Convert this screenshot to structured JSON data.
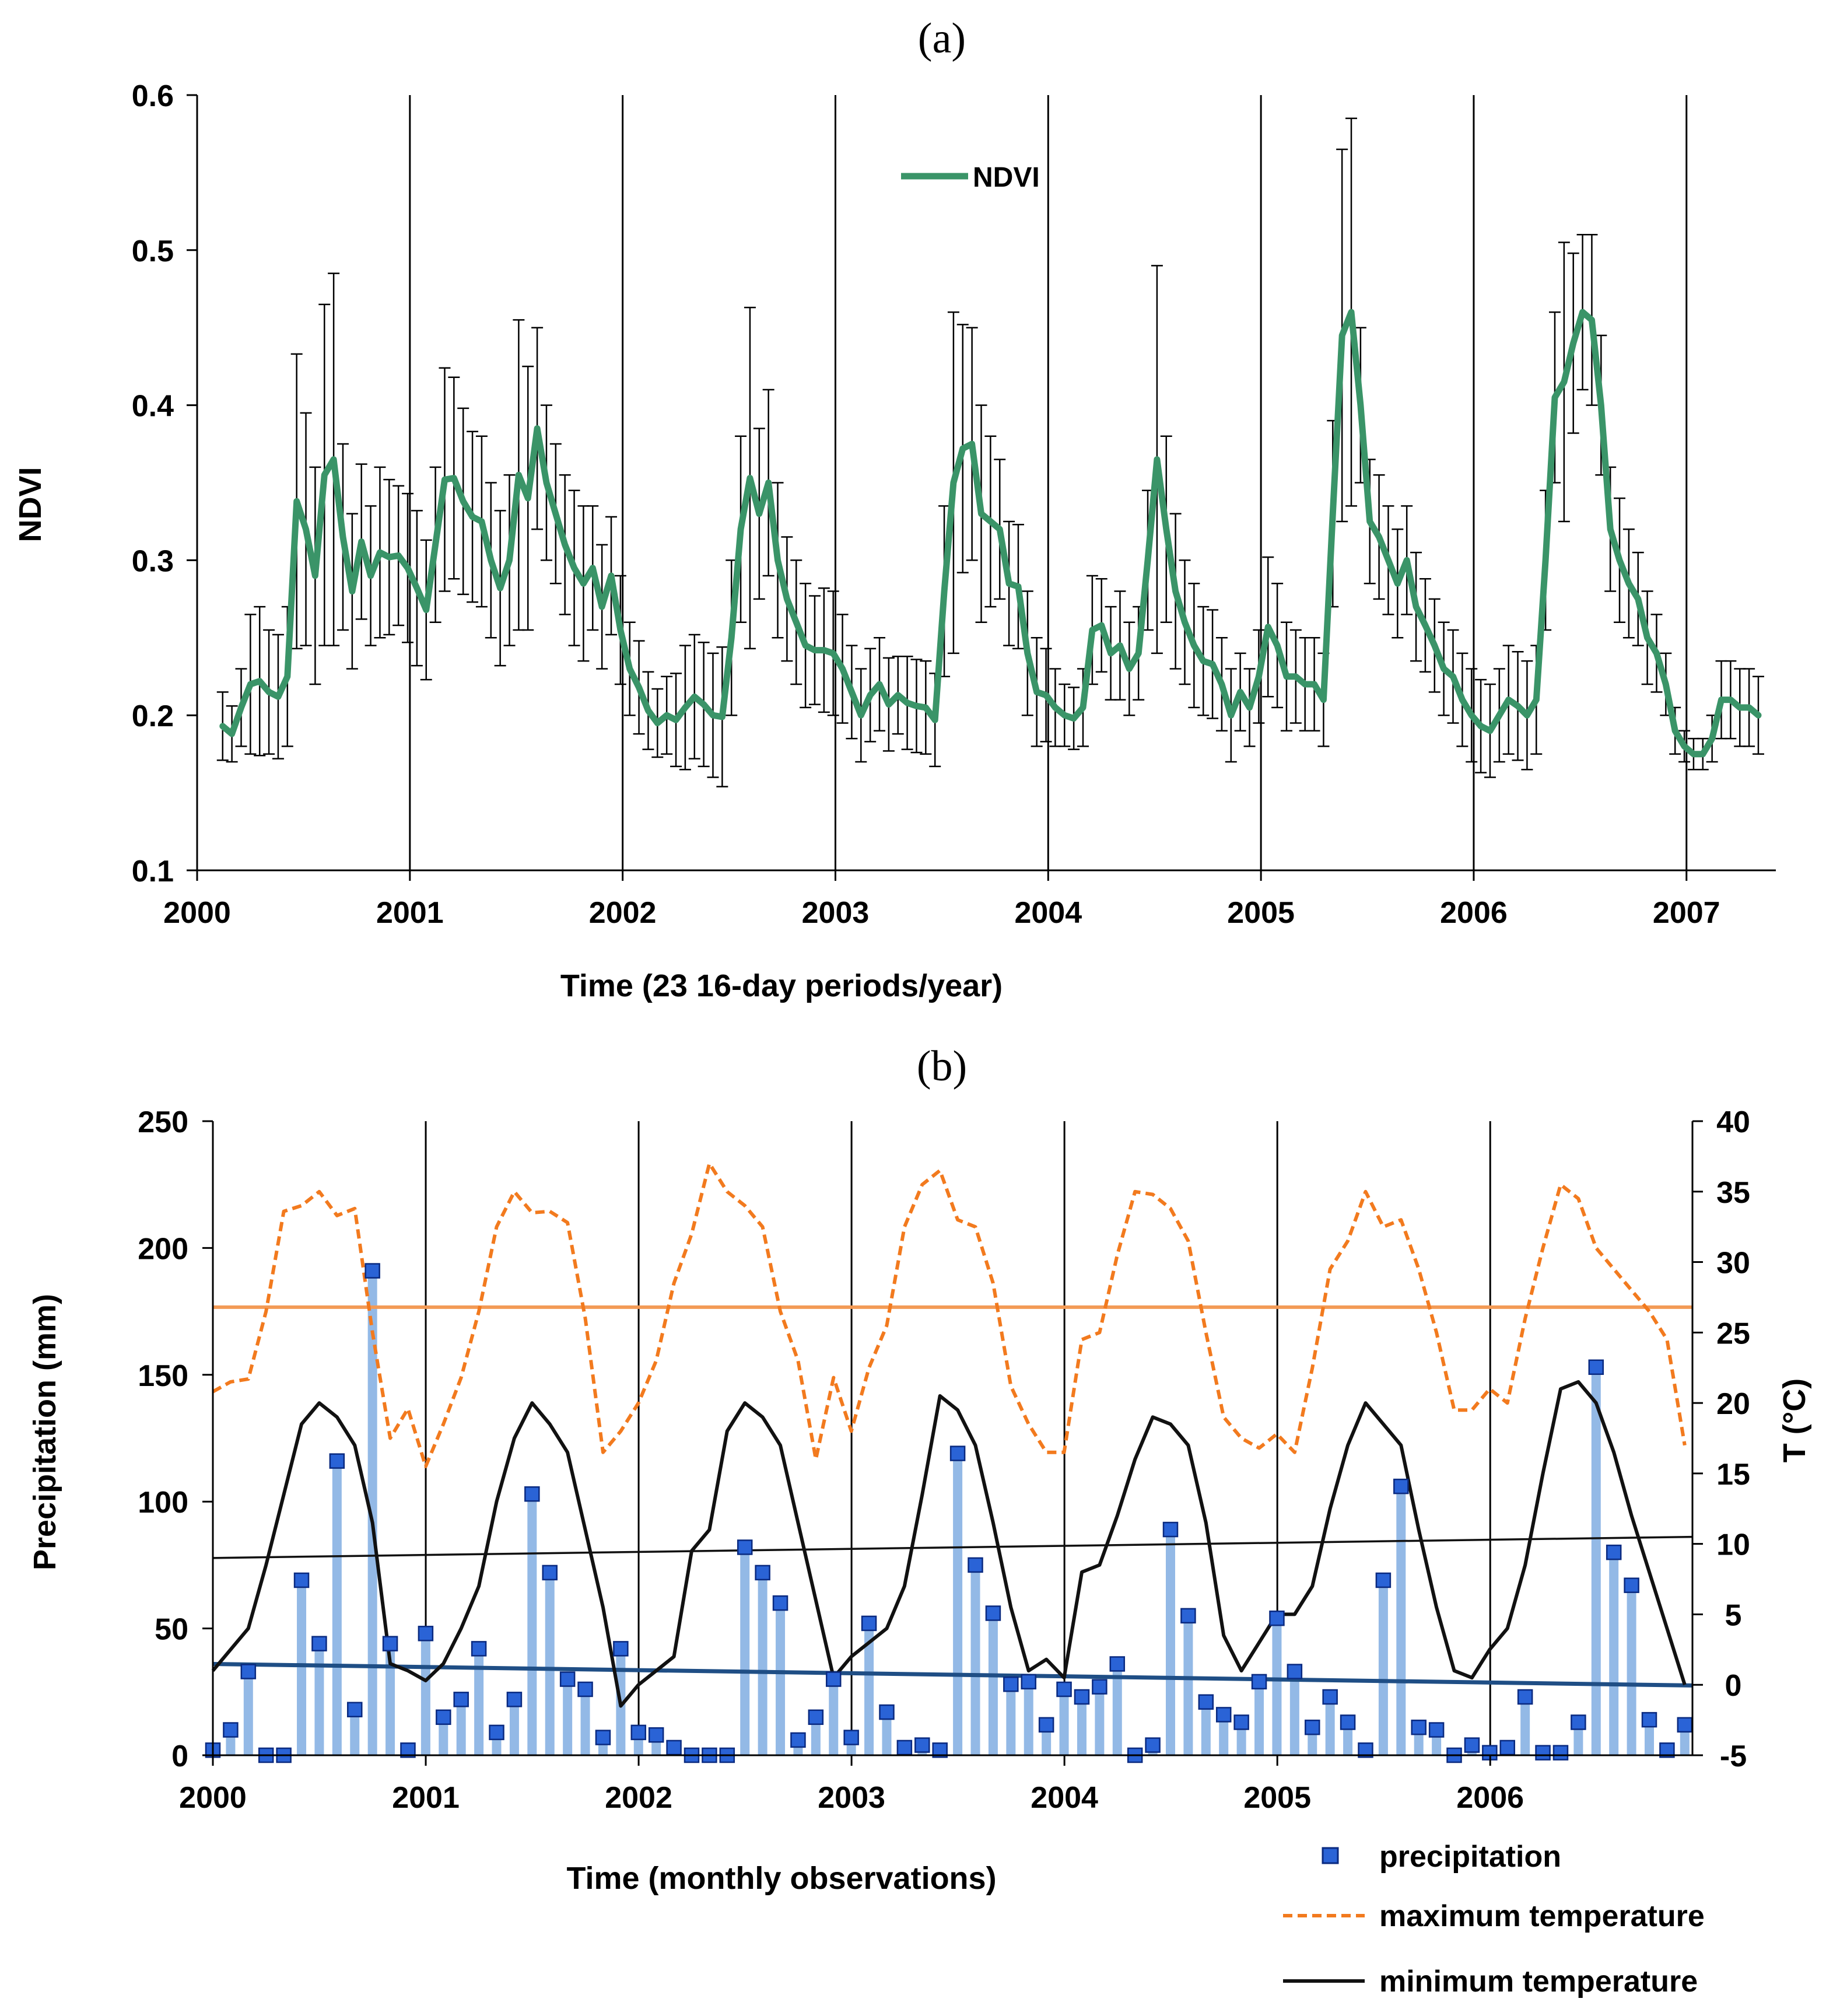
{
  "colors": {
    "ndvi": "#3a9468",
    "errorbar": "#000000",
    "precip_bar": "#93b9e6",
    "precip_marker_fill": "#2a63d6",
    "precip_marker_edge": "#0a2a80",
    "tmax": "#f27a1e",
    "tmax_mean": "#f39a55",
    "tmin": "#111111",
    "tmin_trend": "#111111",
    "precip_trend": "#1f4e85",
    "axis": "#000000"
  },
  "chart_data": [
    {
      "id": "a",
      "type": "line",
      "panel_label": "(a)",
      "title": "",
      "xlabel": "Time (23 16-day periods/year)",
      "ylabel": "NDVI",
      "xlim": [
        2000,
        2007.42
      ],
      "ylim": [
        0.1,
        0.6
      ],
      "x_ticks": [
        2000,
        2001,
        2002,
        2003,
        2004,
        2005,
        2006,
        2007
      ],
      "x_tick_labels": [
        "2000",
        "2001",
        "2002",
        "2003",
        "2004",
        "2005",
        "2006",
        "2007"
      ],
      "y_ticks": [
        0.1,
        0.2,
        0.3,
        0.4,
        0.5,
        0.6
      ],
      "y_tick_labels": [
        "0.1",
        "0.2",
        "0.3",
        "0.4",
        "0.5",
        "0.6"
      ],
      "vertical_gridlines_at": [
        2001,
        2002,
        2003,
        2004,
        2005,
        2006,
        2007
      ],
      "legend": {
        "position": "top-center",
        "entries": [
          "NDVI"
        ]
      },
      "series": [
        {
          "name": "NDVI",
          "x_start": 2000.12,
          "x_step": 0.04348,
          "values": [
            0.193,
            0.188,
            0.205,
            0.22,
            0.222,
            0.215,
            0.212,
            0.225,
            0.338,
            0.32,
            0.29,
            0.355,
            0.365,
            0.315,
            0.28,
            0.312,
            0.29,
            0.305,
            0.302,
            0.303,
            0.295,
            0.282,
            0.268,
            0.31,
            0.352,
            0.353,
            0.338,
            0.328,
            0.325,
            0.3,
            0.282,
            0.3,
            0.355,
            0.34,
            0.385,
            0.35,
            0.33,
            0.31,
            0.295,
            0.285,
            0.295,
            0.27,
            0.29,
            0.255,
            0.23,
            0.218,
            0.203,
            0.195,
            0.2,
            0.197,
            0.205,
            0.212,
            0.207,
            0.2,
            0.199,
            0.25,
            0.32,
            0.353,
            0.33,
            0.35,
            0.3,
            0.275,
            0.26,
            0.245,
            0.242,
            0.242,
            0.24,
            0.23,
            0.215,
            0.2,
            0.213,
            0.22,
            0.207,
            0.213,
            0.208,
            0.206,
            0.205,
            0.197,
            0.28,
            0.35,
            0.372,
            0.375,
            0.33,
            0.325,
            0.32,
            0.285,
            0.283,
            0.24,
            0.215,
            0.213,
            0.205,
            0.2,
            0.198,
            0.205,
            0.255,
            0.258,
            0.24,
            0.245,
            0.23,
            0.24,
            0.3,
            0.365,
            0.32,
            0.28,
            0.26,
            0.245,
            0.235,
            0.233,
            0.22,
            0.2,
            0.215,
            0.205,
            0.225,
            0.257,
            0.245,
            0.225,
            0.225,
            0.22,
            0.22,
            0.21,
            0.33,
            0.445,
            0.46,
            0.4,
            0.325,
            0.315,
            0.3,
            0.285,
            0.3,
            0.27,
            0.258,
            0.245,
            0.23,
            0.225,
            0.21,
            0.2,
            0.193,
            0.19,
            0.2,
            0.21,
            0.206,
            0.2,
            0.21,
            0.3,
            0.405,
            0.415,
            0.44,
            0.46,
            0.455,
            0.4,
            0.32,
            0.3,
            0.285,
            0.275,
            0.25,
            0.24,
            0.22,
            0.19,
            0.18,
            0.175,
            0.175,
            0.185,
            0.21,
            0.21,
            0.205,
            0.205,
            0.2
          ],
          "error": [
            0.022,
            0.018,
            0.025,
            0.045,
            0.048,
            0.04,
            0.04,
            0.045,
            0.095,
            0.075,
            0.07,
            0.11,
            0.12,
            0.06,
            0.05,
            0.05,
            0.045,
            0.055,
            0.05,
            0.045,
            0.048,
            0.05,
            0.045,
            0.05,
            0.072,
            0.065,
            0.06,
            0.055,
            0.055,
            0.05,
            0.05,
            0.055,
            0.1,
            0.085,
            0.065,
            0.05,
            0.045,
            0.045,
            0.05,
            0.05,
            0.04,
            0.04,
            0.038,
            0.035,
            0.03,
            0.03,
            0.025,
            0.022,
            0.025,
            0.03,
            0.04,
            0.04,
            0.04,
            0.04,
            0.045,
            0.05,
            0.06,
            0.11,
            0.055,
            0.06,
            0.05,
            0.04,
            0.04,
            0.04,
            0.035,
            0.04,
            0.04,
            0.035,
            0.03,
            0.03,
            0.03,
            0.03,
            0.03,
            0.025,
            0.03,
            0.03,
            0.03,
            0.03,
            0.055,
            0.11,
            0.08,
            0.075,
            0.07,
            0.055,
            0.045,
            0.04,
            0.04,
            0.04,
            0.035,
            0.03,
            0.025,
            0.02,
            0.02,
            0.025,
            0.035,
            0.03,
            0.03,
            0.035,
            0.03,
            0.03,
            0.045,
            0.125,
            0.06,
            0.05,
            0.04,
            0.04,
            0.035,
            0.035,
            0.03,
            0.03,
            0.025,
            0.025,
            0.03,
            0.045,
            0.04,
            0.035,
            0.03,
            0.03,
            0.03,
            0.03,
            0.06,
            0.12,
            0.125,
            0.05,
            0.04,
            0.04,
            0.035,
            0.035,
            0.035,
            0.035,
            0.03,
            0.03,
            0.03,
            0.03,
            0.03,
            0.03,
            0.03,
            0.03,
            0.03,
            0.035,
            0.035,
            0.035,
            0.035,
            0.045,
            0.055,
            0.09,
            0.058,
            0.05,
            0.055,
            0.045,
            0.04,
            0.04,
            0.035,
            0.03,
            0.03,
            0.025,
            0.02,
            0.015,
            0.01,
            0.01,
            0.01,
            0.015,
            0.025,
            0.025,
            0.025,
            0.025,
            0.025
          ]
        }
      ]
    },
    {
      "id": "b",
      "type": "bar",
      "panel_label": "(b)",
      "title": "",
      "xlabel": "Time (monthly observations)",
      "ylabel": "Precipitation (mm)",
      "y2label": "T (°C)",
      "xlim": [
        2000,
        2006.95
      ],
      "ylim": [
        0,
        250
      ],
      "y2lim": [
        -5,
        40
      ],
      "x_ticks": [
        2000,
        2001,
        2002,
        2003,
        2004,
        2005,
        2006
      ],
      "x_tick_labels": [
        "2000",
        "2001",
        "2002",
        "2003",
        "2004",
        "2005",
        "2006"
      ],
      "y_ticks": [
        0,
        50,
        100,
        150,
        200,
        250
      ],
      "y_tick_labels": [
        "0",
        "50",
        "100",
        "150",
        "200",
        "250"
      ],
      "y2_ticks": [
        -5,
        0,
        5,
        10,
        15,
        20,
        25,
        30,
        35,
        40
      ],
      "y2_tick_labels": [
        "-5",
        "0",
        "5",
        "10",
        "15",
        "20",
        "25",
        "30",
        "35",
        "40"
      ],
      "vertical_gridlines_at": [
        2001,
        2002,
        2003,
        2004,
        2005,
        2006
      ],
      "legend": {
        "position": "bottom-right",
        "entries": [
          "precipitation",
          "maximum temperature",
          "minimum temperature"
        ]
      },
      "series": [
        {
          "name": "precipitation",
          "axis": "left",
          "x_start": 2000.0,
          "x_step": 0.0833,
          "values": [
            2,
            10,
            33,
            0,
            0,
            69,
            44,
            116,
            18,
            191,
            44,
            2,
            48,
            15,
            22,
            42,
            9,
            22,
            103,
            72,
            30,
            26,
            7,
            42,
            9,
            8,
            3,
            0,
            0,
            0,
            82,
            72,
            60,
            6,
            15,
            30,
            7,
            52,
            17,
            3,
            4,
            2,
            119,
            75,
            56,
            28,
            29,
            12,
            26,
            23,
            27,
            36,
            0,
            4,
            89,
            55,
            21,
            16,
            13,
            29,
            54,
            33,
            11,
            23,
            13,
            2,
            69,
            106,
            11,
            10,
            0,
            4,
            1,
            3,
            23,
            1,
            1,
            13,
            153,
            80,
            67,
            14,
            2,
            12
          ]
        },
        {
          "name": "maximum temperature",
          "axis": "right",
          "x_start": 2000.0,
          "x_step": 0.0833,
          "values": [
            20.8,
            21.5,
            21.7,
            26.5,
            33.6,
            34.0,
            35.0,
            33.3,
            33.8,
            25.0,
            17.5,
            19.6,
            15.5,
            18.5,
            21.8,
            26.5,
            32.5,
            35.0,
            33.5,
            33.6,
            32.8,
            26.0,
            16.5,
            18.0,
            20.0,
            23.0,
            28.5,
            32.0,
            37.0,
            35.0,
            34.0,
            32.5,
            26.5,
            23.0,
            16.0,
            21.8,
            18.0,
            22.5,
            25.5,
            32.5,
            35.5,
            36.5,
            33.0,
            32.5,
            28.5,
            21.2,
            18.5,
            16.5,
            16.5,
            24.5,
            25.0,
            30.5,
            35.0,
            34.8,
            33.8,
            31.5,
            25.0,
            19.0,
            17.5,
            16.8,
            17.8,
            16.5,
            22.5,
            29.5,
            31.5,
            35.0,
            32.5,
            33.0,
            29.5,
            25.0,
            19.5,
            19.5,
            21.0,
            20.0,
            26.0,
            31.0,
            35.5,
            34.5,
            31.0,
            29.5,
            28.0,
            26.5,
            24.5,
            17.0
          ]
        },
        {
          "name": "minimum temperature",
          "axis": "right",
          "x_start": 2000.0,
          "x_step": 0.0833,
          "values": [
            1.0,
            2.5,
            4.0,
            8.5,
            13.5,
            18.5,
            20.0,
            19.0,
            17.0,
            11.5,
            1.5,
            1.0,
            0.3,
            1.5,
            4.0,
            7.0,
            13.0,
            17.5,
            20.0,
            18.5,
            16.5,
            11.0,
            5.5,
            -1.5,
            0.0,
            1.0,
            2.0,
            9.5,
            11.0,
            18.0,
            20.0,
            19.0,
            17.0,
            11.5,
            6.0,
            0.5,
            2.0,
            3.0,
            4.0,
            7.0,
            13.5,
            20.5,
            19.5,
            17.0,
            11.5,
            5.5,
            1.0,
            1.8,
            0.5,
            8.0,
            8.5,
            12.0,
            16.0,
            19.0,
            18.5,
            17.0,
            11.5,
            3.5,
            1.0,
            3.0,
            5.0,
            5.0,
            7.0,
            12.5,
            17.0,
            20.0,
            18.5,
            17.0,
            11.0,
            5.5,
            1.0,
            0.5,
            2.5,
            4.0,
            8.5,
            15.0,
            21.0,
            21.5,
            20.0,
            16.5,
            12.0,
            8.0,
            4.0,
            0.0
          ]
        },
        {
          "name": "maximum temperature mean (reference line)",
          "axis": "right",
          "values": [
            26.8,
            26.8
          ]
        },
        {
          "name": "minimum temperature trend",
          "axis": "right",
          "values": [
            9.0,
            10.5
          ]
        },
        {
          "name": "precipitation trend",
          "axis": "left",
          "values": [
            36,
            27.5
          ]
        }
      ]
    }
  ]
}
